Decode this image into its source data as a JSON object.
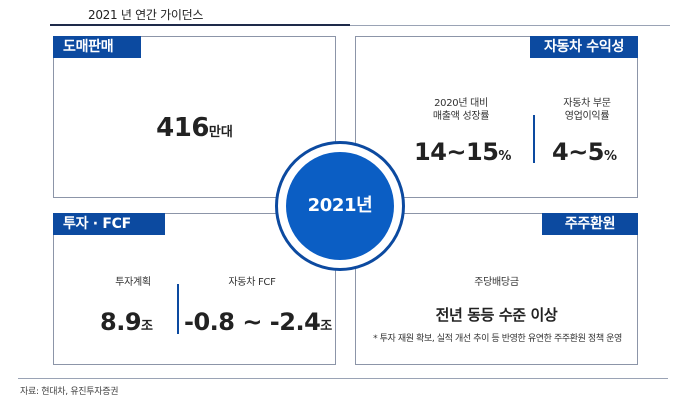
{
  "header": {
    "title": "2021 년 연간 가이던스"
  },
  "wholesale": {
    "tag": "도매판매",
    "value": "416",
    "unit": "만대"
  },
  "profitability": {
    "tag": "자동차 수익성",
    "label_a_line1": "2020년 대비",
    "label_a_line2": "매출액 성장률",
    "value_a": "14~15",
    "unit_a": "%",
    "label_b_line1": "자동차 부문",
    "label_b_line2": "영업이익률",
    "value_b": "4~5",
    "unit_b": "%"
  },
  "investment": {
    "tag": "투자 · FCF",
    "label_a": "투자계획",
    "value_a": "8.9",
    "unit_a": "조",
    "label_b": "자동차 FCF",
    "value_b": "-0.8 ~ -2.4",
    "unit_b": "조"
  },
  "shareholder": {
    "tag": "주주환원",
    "label": "주당배당금",
    "headline": "전년 동등 수준 이상",
    "note": "* 투자 재원 확보, 실적 개선 추이 등 반영한 유연한 주주환원 정책 운영"
  },
  "center": {
    "year": "2021년"
  },
  "footer": {
    "source": "자료: 현대차, 유진투자증권"
  },
  "colors": {
    "accent": "#0c4aa0",
    "circle": "#0b5ec4"
  }
}
